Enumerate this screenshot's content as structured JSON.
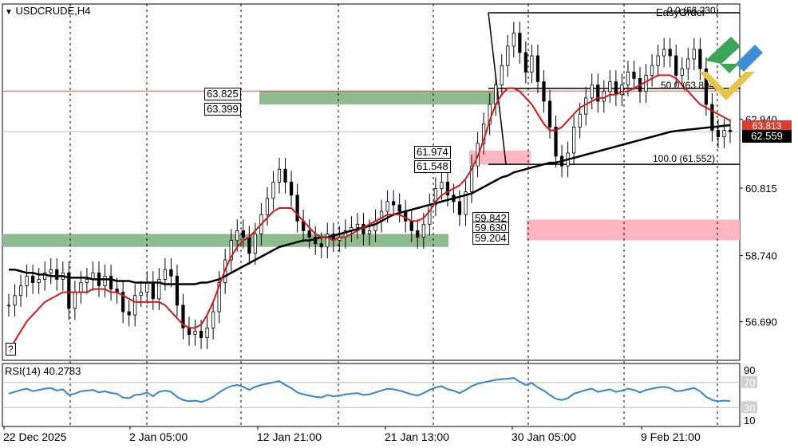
{
  "symbol": "USDCRUDE,H4",
  "indicator_label": "RSI(14) 40.2783",
  "help_button": "?",
  "easy_order": "EasyOrder",
  "fib_0": "0.0 (66.230)",
  "fib_50": "50.0 (63.894)",
  "fib_100": "100.0 (61.552)",
  "zone_labels": {
    "z1_top": "63.825",
    "z1_bot": "63.399",
    "z2_top": "61.974",
    "z2_bot": "61.548",
    "z3_top": "59.842",
    "z3_mid": "59.630",
    "z3_bot": "59.204"
  },
  "price_badges": {
    "red": "63.813",
    "current": "62.559"
  },
  "colors": {
    "green_zone": "#8fbc8f",
    "pink_zone": "#ffb6c1",
    "ma_fast": "#d11a1a",
    "ma_slow": "#000000",
    "rsi": "#2f86d6"
  },
  "chart_data": {
    "type": "candlestick",
    "price_ticks": [
      56.69,
      58.74,
      60.815,
      62.94
    ],
    "rsi_ticks": [
      90,
      70,
      30,
      10
    ],
    "x_labels": [
      "22 Dec 2025",
      "2 Jan 05:00",
      "12 Jan 21:00",
      "21 Jan 13:00",
      "30 Jan 05:00",
      "9 Feb 21:00"
    ],
    "ylim": [
      55.5,
      66.5
    ],
    "rsi_range": [
      0,
      100
    ],
    "zones": [
      {
        "color": "green",
        "top": 63.825,
        "bottom": 63.399
      },
      {
        "color": "green",
        "top": 59.4,
        "bottom": 59.0
      },
      {
        "color": "pink",
        "top": 61.974,
        "bottom": 61.548
      },
      {
        "color": "pink",
        "top": 59.842,
        "bottom": 59.204
      }
    ],
    "fibonacci": [
      {
        "level": "0.0",
        "price": 66.23
      },
      {
        "level": "50.0",
        "price": 63.894
      },
      {
        "level": "100.0",
        "price": 61.552
      }
    ],
    "current_price": 62.559,
    "red_price": 63.813,
    "closes": [
      57.2,
      57.5,
      57.8,
      58.1,
      57.9,
      58.0,
      58.2,
      58.3,
      58.0,
      58.2,
      57.1,
      57.6,
      57.9,
      58.0,
      58.2,
      57.8,
      58.1,
      57.7,
      57.6,
      57.0,
      56.9,
      57.5,
      57.6,
      57.9,
      57.4,
      58.0,
      58.3,
      58.1,
      57.2,
      56.5,
      56.3,
      56.4,
      56.2,
      56.5,
      57.0,
      57.9,
      58.6,
      59.2,
      59.5,
      59.3,
      58.8,
      59.4,
      60.0,
      60.5,
      61.0,
      61.4,
      61.0,
      60.6,
      59.8,
      59.5,
      59.3,
      59.1,
      59.0,
      59.4,
      59.2,
      59.3,
      59.5,
      59.6,
      59.7,
      59.4,
      59.5,
      59.8,
      60.1,
      60.4,
      60.3,
      60.1,
      59.8,
      59.5,
      59.3,
      59.7,
      60.3,
      60.8,
      61.0,
      60.6,
      60.4,
      60.0,
      60.7,
      61.5,
      62.2,
      62.8,
      63.4,
      64.0,
      64.6,
      65.2,
      65.6,
      65.0,
      64.4,
      64.9,
      64.1,
      63.5,
      62.7,
      61.8,
      61.5,
      61.9,
      62.7,
      63.1,
      63.6,
      64.0,
      63.5,
      63.8,
      64.1,
      63.7,
      64.0,
      64.4,
      64.2,
      63.8,
      64.3,
      64.6,
      64.9,
      65.1,
      64.9,
      64.3,
      64.5,
      64.8,
      65.1,
      64.5,
      63.4,
      62.6,
      62.4,
      62.6,
      62.56
    ],
    "ma_fast": [
      55.8,
      56.1,
      56.4,
      56.7,
      56.9,
      57.1,
      57.3,
      57.4,
      57.5,
      57.6,
      57.6,
      57.6,
      57.6,
      57.6,
      57.7,
      57.7,
      57.7,
      57.6,
      57.6,
      57.5,
      57.4,
      57.3,
      57.3,
      57.3,
      57.3,
      57.3,
      57.2,
      57.0,
      56.8,
      56.6,
      56.5,
      56.5,
      56.6,
      56.9,
      57.3,
      57.8,
      58.3,
      58.7,
      59.0,
      59.2,
      59.3,
      59.5,
      59.7,
      59.9,
      60.1,
      60.2,
      60.2,
      60.2,
      60.0,
      59.8,
      59.6,
      59.4,
      59.3,
      59.3,
      59.2,
      59.3,
      59.3,
      59.4,
      59.5,
      59.6,
      59.7,
      59.8,
      59.9,
      60.0,
      60.0,
      60.0,
      59.9,
      59.8,
      59.8,
      59.9,
      60.1,
      60.4,
      60.6,
      60.7,
      60.8,
      60.9,
      61.1,
      61.4,
      61.8,
      62.3,
      62.9,
      63.4,
      63.7,
      63.9,
      63.9,
      63.8,
      63.6,
      63.4,
      63.1,
      62.8,
      62.6,
      62.6,
      62.7,
      62.9,
      63.1,
      63.3,
      63.4,
      63.5,
      63.6,
      63.6,
      63.7,
      63.7,
      63.8,
      63.8,
      63.9,
      64.0,
      64.1,
      64.2,
      64.3,
      64.3,
      64.3,
      64.2,
      64.0,
      63.8,
      63.6,
      63.4,
      63.3,
      63.2,
      63.1,
      63.0,
      62.9
    ],
    "ma_slow": [
      58.3,
      58.3,
      58.25,
      58.2,
      58.2,
      58.15,
      58.15,
      58.1,
      58.1,
      58.1,
      58.05,
      58.05,
      58.05,
      58.05,
      58.0,
      58.0,
      58.0,
      58.0,
      57.95,
      57.95,
      57.95,
      57.9,
      57.9,
      57.9,
      57.9,
      57.9,
      57.85,
      57.85,
      57.85,
      57.85,
      57.85,
      57.85,
      57.9,
      57.9,
      57.95,
      58.0,
      58.1,
      58.2,
      58.3,
      58.4,
      58.5,
      58.6,
      58.7,
      58.8,
      58.9,
      59.0,
      59.05,
      59.1,
      59.15,
      59.2,
      59.2,
      59.25,
      59.3,
      59.3,
      59.35,
      59.4,
      59.45,
      59.5,
      59.55,
      59.6,
      59.65,
      59.7,
      59.8,
      59.9,
      60.0,
      60.05,
      60.1,
      60.15,
      60.2,
      60.25,
      60.3,
      60.35,
      60.4,
      60.45,
      60.5,
      60.55,
      60.6,
      60.65,
      60.75,
      60.85,
      60.95,
      61.05,
      61.15,
      61.2,
      61.3,
      61.35,
      61.4,
      61.45,
      61.5,
      61.55,
      61.6,
      61.6,
      61.65,
      61.7,
      61.75,
      61.8,
      61.85,
      61.9,
      61.95,
      62.0,
      62.05,
      62.1,
      62.15,
      62.2,
      62.25,
      62.3,
      62.35,
      62.4,
      62.45,
      62.5,
      62.55,
      62.58,
      62.6,
      62.62,
      62.64,
      62.66,
      62.68,
      62.7,
      62.72,
      62.74,
      62.76
    ],
    "rsi": [
      52,
      55,
      58,
      60,
      56,
      58,
      60,
      61,
      57,
      59,
      50,
      52,
      56,
      57,
      58,
      54,
      56,
      53,
      52,
      46,
      45,
      50,
      51,
      54,
      48,
      55,
      57,
      55,
      47,
      42,
      40,
      41,
      39,
      42,
      47,
      54,
      60,
      64,
      66,
      63,
      58,
      63,
      66,
      68,
      70,
      72,
      66,
      61,
      54,
      51,
      49,
      47,
      46,
      50,
      48,
      49,
      51,
      52,
      53,
      50,
      51,
      54,
      57,
      60,
      59,
      57,
      54,
      51,
      49,
      53,
      58,
      62,
      64,
      59,
      57,
      53,
      58,
      64,
      68,
      70,
      72,
      74,
      75,
      76,
      77,
      71,
      66,
      69,
      62,
      57,
      50,
      44,
      42,
      45,
      52,
      55,
      58,
      60,
      55,
      57,
      59,
      55,
      57,
      60,
      58,
      54,
      58,
      60,
      62,
      63,
      61,
      56,
      57,
      59,
      61,
      56,
      47,
      42,
      40,
      41,
      40.3
    ]
  }
}
